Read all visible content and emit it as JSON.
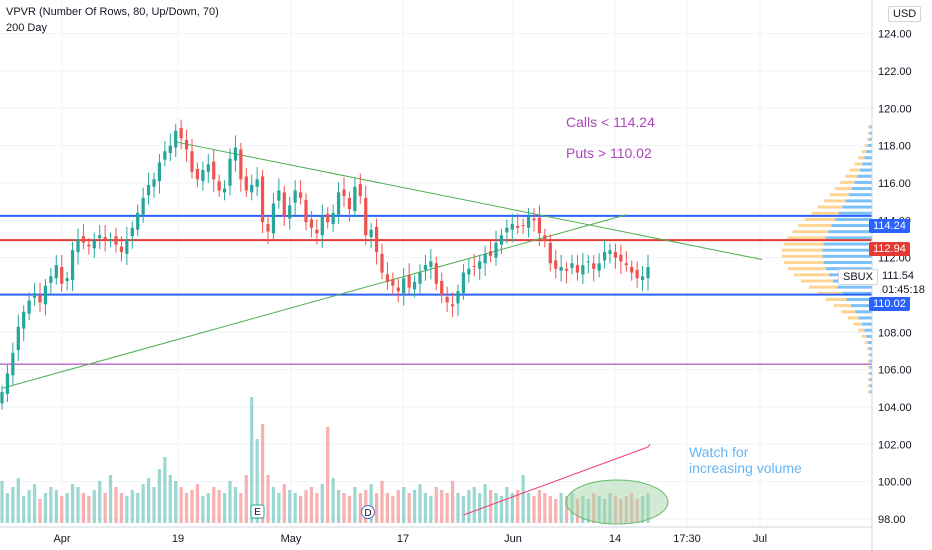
{
  "header": {
    "indicator": "VPVR (Number Of Rows, 80, Up/Down, 70)",
    "ma": "200 Day"
  },
  "currency_button": "USD",
  "annotations": {
    "calls": "Calls < 114.24",
    "puts": "Puts  > 110.02",
    "watch": "Watch for\nincreasing volume"
  },
  "price_badges": {
    "upper": "114.24",
    "red": "112.94",
    "symbol": "SBUX",
    "last": "111.54",
    "countdown": "01:45:18",
    "lower": "110.02"
  },
  "event_markers": [
    "E",
    "D"
  ],
  "colors": {
    "up": "#26a69a",
    "down": "#ef5350",
    "upper_line": "#2962ff",
    "red_line": "#e53935",
    "purple_line": "#9c27b0",
    "trendline": "#4caf50",
    "annotation": "#ab47bc",
    "watch_text": "#64b5f6",
    "vp_up": "#64b5f6",
    "vp_down": "#ffcc80"
  },
  "chart_data": {
    "type": "candlestick",
    "ylim": [
      98,
      125
    ],
    "y_ticks": [
      "124.00",
      "122.00",
      "120.00",
      "118.00",
      "116.00",
      "114.00",
      "112.00",
      "110.00",
      "108.00",
      "106.00",
      "104.00",
      "102.00",
      "100.00",
      "98.00"
    ],
    "x_ticks": [
      "Apr",
      "19",
      "May",
      "17",
      "Jun",
      "14",
      "17:30",
      "Jul"
    ],
    "levels": {
      "upper": 114.24,
      "red": 112.94,
      "lower": 110.02,
      "purple": 106.3
    },
    "trend_segments": [
      {
        "from": [
          "day",
          0,
          105.0
        ],
        "to": [
          "day",
          115,
          114.3
        ]
      },
      {
        "from": [
          "day",
          32,
          118.2
        ],
        "to": [
          "day",
          140,
          111.9
        ]
      }
    ],
    "close": [
      104.8,
      105.8,
      106.9,
      108.3,
      109.1,
      109.7,
      110.1,
      109.6,
      110.5,
      111.0,
      111.6,
      110.6,
      110.9,
      112.4,
      113.0,
      112.8,
      112.6,
      112.9,
      113.2,
      113.0,
      113.0,
      112.7,
      112.3,
      113.0,
      113.6,
      114.4,
      115.2,
      115.9,
      116.2,
      117.1,
      117.7,
      118.0,
      118.8,
      118.4,
      117.8,
      116.6,
      116.2,
      116.7,
      117.0,
      116.2,
      115.6,
      115.7,
      117.3,
      117.9,
      116.2,
      115.6,
      115.9,
      116.2,
      113.9,
      113.4,
      114.9,
      115.6,
      114.2,
      114.8,
      115.6,
      115.2,
      113.9,
      113.6,
      113.3,
      114.2,
      113.9,
      114.4,
      115.5,
      115.3,
      114.6,
      115.8,
      115.3,
      113.2,
      113.5,
      112.3,
      111.2,
      110.7,
      110.5,
      110.2,
      110.9,
      110.4,
      110.7,
      111.2,
      111.6,
      111.8,
      110.6,
      110.0,
      109.6,
      109.4,
      110.2,
      111.2,
      111.4,
      111.5,
      111.8,
      112.2,
      112.1,
      112.8,
      113.2,
      113.6,
      113.8,
      113.6,
      113.7,
      114.2,
      114.0,
      113.3,
      112.9,
      111.7,
      111.4,
      111.5,
      111.3,
      111.7,
      111.2,
      111.6,
      111.8,
      111.4,
      111.7,
      112.3,
      112.4,
      112.0,
      111.8,
      111.6,
      111.2,
      110.9,
      111.0,
      111.5
    ],
    "volume": [
      1.4,
      1.0,
      1.2,
      1.5,
      0.9,
      1.1,
      1.3,
      0.8,
      1.0,
      1.2,
      1.1,
      0.9,
      1.0,
      1.3,
      1.2,
      1.0,
      0.9,
      1.1,
      1.4,
      1.0,
      1.6,
      1.2,
      1.0,
      0.9,
      1.1,
      1.0,
      1.3,
      1.5,
      1.2,
      1.8,
      2.2,
      1.6,
      1.4,
      1.2,
      1.0,
      1.1,
      1.3,
      0.9,
      1.0,
      1.2,
      1.1,
      1.0,
      1.4,
      1.2,
      1.0,
      1.6,
      4.2,
      2.8,
      3.3,
      1.6,
      1.2,
      1.0,
      1.3,
      1.1,
      1.0,
      0.9,
      1.1,
      1.2,
      1.0,
      1.3,
      3.2,
      1.5,
      1.1,
      1.0,
      0.9,
      1.2,
      1.0,
      1.1,
      1.3,
      1.0,
      1.4,
      1.0,
      0.9,
      1.1,
      1.2,
      1.0,
      1.1,
      1.3,
      1.0,
      0.9,
      1.2,
      1.1,
      1.0,
      1.4,
      1.0,
      0.9,
      1.1,
      1.2,
      1.0,
      1.3,
      1.1,
      1.0,
      0.9,
      1.2,
      1.0,
      1.1,
      1.6,
      1.0,
      0.9,
      1.1,
      1.0,
      0.9,
      0.8,
      1.0,
      0.9,
      1.0,
      0.8,
      0.9,
      0.8,
      1.0,
      0.9,
      0.8,
      1.0,
      0.9,
      0.8,
      0.9,
      1.0,
      0.8,
      0.9,
      1.0
    ]
  }
}
